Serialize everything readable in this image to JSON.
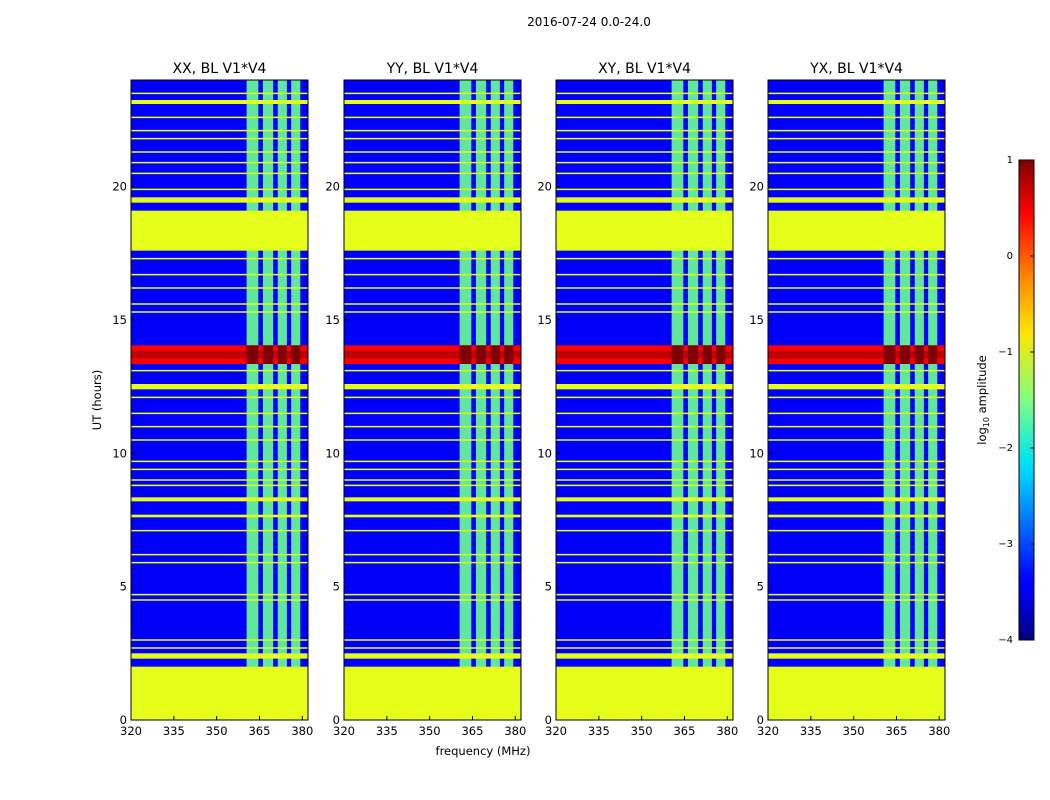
{
  "chart_data": {
    "type": "heatmap",
    "title": "2016-07-24 0.0-24.0",
    "xlabel": "frequency (MHz)",
    "ylabel": "UT (hours)",
    "xlim": [
      320,
      382
    ],
    "ylim": [
      0,
      24
    ],
    "x_ticks": [
      320,
      335,
      350,
      365,
      380
    ],
    "y_ticks": [
      0,
      5,
      10,
      15,
      20
    ],
    "colorbar": {
      "label": "log10 amplitude",
      "label_base": "log",
      "label_sub": "10",
      "label_rest": " amplitude",
      "min": -4,
      "max": 1,
      "ticks": [
        1,
        0,
        -1,
        -2,
        -3,
        -4
      ],
      "tick_labels": [
        "1",
        "0",
        "−1",
        "−2",
        "−3",
        "−4"
      ]
    },
    "panels": [
      {
        "title": "XX, BL V1*V4"
      },
      {
        "title": "YY, BL V1*V4"
      },
      {
        "title": "XY, BL V1*V4"
      },
      {
        "title": "YX, BL V1*V4"
      }
    ],
    "flagged_value": -1,
    "flagged_time_ranges": [
      [
        0.0,
        2.0
      ],
      [
        17.6,
        19.1
      ],
      [
        12.4,
        12.6
      ],
      [
        19.4,
        19.6
      ],
      [
        2.3,
        2.5
      ],
      [
        7.6,
        7.7
      ],
      [
        8.2,
        8.35
      ],
      [
        23.1,
        23.25
      ]
    ],
    "flagged_times": [
      0.3,
      1.1,
      2.7,
      3.0,
      4.5,
      4.7,
      5.9,
      6.2,
      7.1,
      8.8,
      9.0,
      9.4,
      9.7,
      10.5,
      11.0,
      11.5,
      12.1,
      13.1,
      15.3,
      15.6,
      16.2,
      16.7,
      17.3,
      19.9,
      20.5,
      20.9,
      21.3,
      21.8,
      22.1,
      22.6,
      23.5
    ],
    "rfi_channels_mhz": [
      [
        360.5,
        364.6
      ],
      [
        366.2,
        369.8
      ],
      [
        371.4,
        374.6
      ],
      [
        376.1,
        379.3
      ]
    ],
    "rfi_event": {
      "ut_center": 13.7,
      "ut_halfwidth": 0.35,
      "peak_log10_amplitude": 1
    },
    "background_log10_amplitude": -3.4,
    "rfi_channel_log10_amplitude": -1.6
  }
}
